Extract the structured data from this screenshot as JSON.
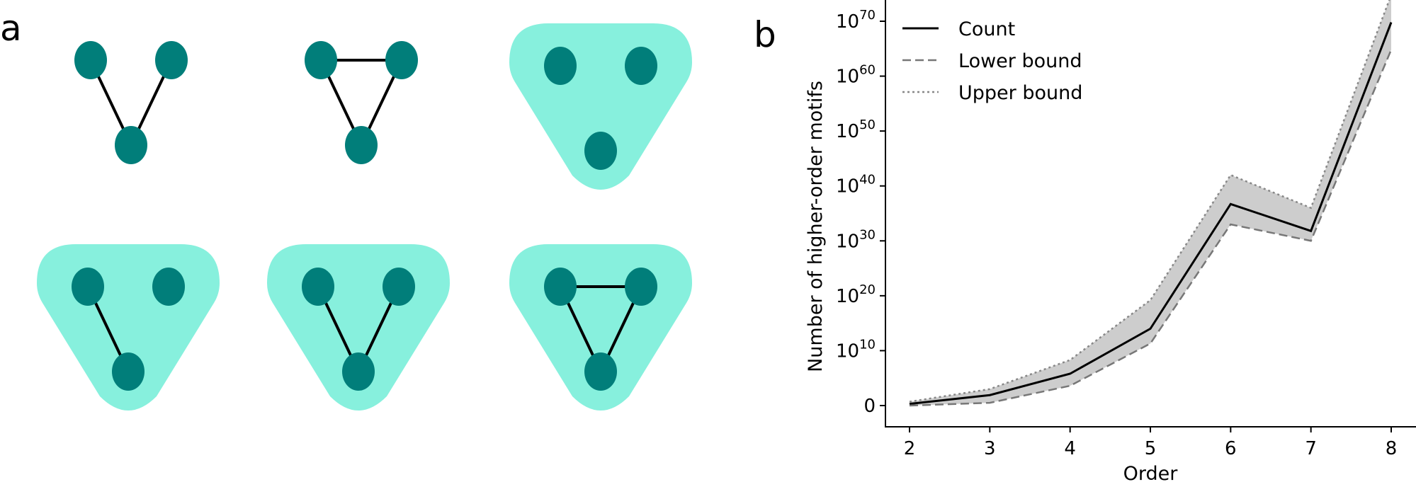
{
  "panels": {
    "a_label": "a",
    "b_label": "b"
  },
  "motif_colors": {
    "node": "#017e7a",
    "hyperedge": "#87f0dd",
    "edge": "#000000"
  },
  "motifs": [
    {
      "hyperedge": false,
      "edges": [
        [
          0,
          2
        ],
        [
          1,
          2
        ]
      ]
    },
    {
      "hyperedge": false,
      "edges": [
        [
          0,
          1
        ],
        [
          0,
          2
        ],
        [
          1,
          2
        ]
      ]
    },
    {
      "hyperedge": true,
      "edges": []
    },
    {
      "hyperedge": true,
      "edges": [
        [
          0,
          2
        ]
      ]
    },
    {
      "hyperedge": true,
      "edges": [
        [
          0,
          2
        ],
        [
          1,
          2
        ]
      ]
    },
    {
      "hyperedge": true,
      "edges": [
        [
          0,
          1
        ],
        [
          0,
          2
        ],
        [
          1,
          2
        ]
      ]
    }
  ],
  "chart_data": {
    "type": "line",
    "title": "",
    "xlabel": "Order",
    "ylabel": "Number of higher-order motifs",
    "y_scale": "symlog",
    "x": [
      2,
      3,
      4,
      5,
      6,
      7,
      8
    ],
    "x_ticks": [
      "2",
      "3",
      "4",
      "5",
      "6",
      "7",
      "8"
    ],
    "y_ticks": [
      {
        "value": 0,
        "base": "0",
        "exp": ""
      },
      {
        "value": 10,
        "base": "10",
        "exp": "10"
      },
      {
        "value": 20,
        "base": "10",
        "exp": "20"
      },
      {
        "value": 30,
        "base": "10",
        "exp": "30"
      },
      {
        "value": 40,
        "base": "10",
        "exp": "40"
      },
      {
        "value": 50,
        "base": "10",
        "exp": "50"
      },
      {
        "value": 60,
        "base": "10",
        "exp": "60"
      },
      {
        "value": 70,
        "base": "10",
        "exp": "70"
      }
    ],
    "ylim_log10": [
      -2,
      77
    ],
    "xlim": [
      1.75,
      8.15
    ],
    "series": [
      {
        "name": "Count",
        "style": "solid",
        "color": "#000000",
        "log10_values": [
          0.3,
          1.9,
          5.8,
          14.0,
          36.7,
          31.8,
          69.8
        ]
      },
      {
        "name": "Lower bound",
        "style": "dashed",
        "color": "#777777",
        "log10_values": [
          0.0,
          0.5,
          3.6,
          11.3,
          33.0,
          30.0,
          64.8
        ]
      },
      {
        "name": "Upper bound",
        "style": "dotted",
        "color": "#888888",
        "log10_values": [
          0.7,
          3.0,
          8.3,
          19.2,
          42.0,
          36.0,
          74.8
        ]
      }
    ],
    "fill_between": {
      "lower": "Lower bound",
      "upper": "Upper bound",
      "color": "#c8c8c8"
    },
    "legend_position": "upper-left",
    "grid": false
  }
}
